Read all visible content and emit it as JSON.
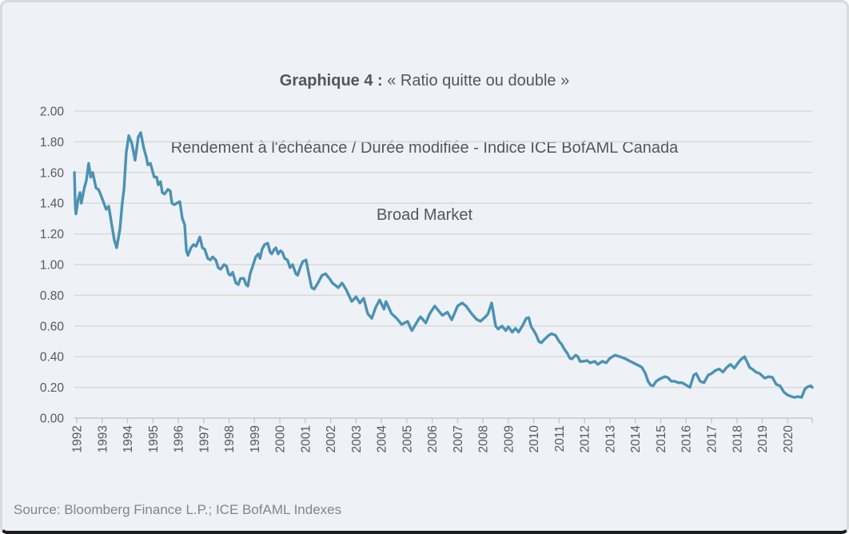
{
  "title": {
    "prefix": "Graphique 4 :",
    "line1_rest": " « Ratio quitte ou double »",
    "line2": "Rendement à l'échéance / Durée modifiée - Indice ICE BofAML Canada",
    "line3": "Broad Market"
  },
  "source": {
    "text": "Source: Bloomberg Finance L.P.; ICE BofAML Indexes"
  },
  "colors": {
    "background": "#eef1f5",
    "line": "#4b92b4",
    "gridline": "#d9d9d9",
    "axis": "#c4c7c9",
    "tick": "#c4c7c9",
    "axis_text": "#58595b",
    "title_text": "#54565a",
    "source_text": "#82868a"
  },
  "chart_data": {
    "type": "line",
    "title": "Graphique 4 : « Ratio quitte ou double » — Rendement à l'échéance / Durée modifiée - Indice ICE BofAML Canada Broad Market",
    "xlabel": "",
    "ylabel": "",
    "xlim": [
      1991.9,
      2021.0
    ],
    "ylim": [
      0,
      2
    ],
    "grid": "horizontal",
    "legend": "none",
    "yticks": [
      0,
      0.2,
      0.4,
      0.6,
      0.8,
      1.0,
      1.2,
      1.4,
      1.6,
      1.8,
      2.0
    ],
    "ytick_labels": [
      "0.00",
      "0.20",
      "0.40",
      "0.60",
      "0.80",
      "1.00",
      "1.20",
      "1.40",
      "1.60",
      "1.80",
      "2.00"
    ],
    "xticks": [
      1992,
      1993,
      1994,
      1995,
      1996,
      1997,
      1998,
      1999,
      2000,
      2001,
      2002,
      2003,
      2004,
      2005,
      2006,
      2007,
      2008,
      2009,
      2010,
      2011,
      2012,
      2013,
      2014,
      2015,
      2016,
      2017,
      2018,
      2019,
      2020
    ],
    "series": [
      {
        "name": "Rendement à l'échéance / Durée modifiée",
        "points": [
          [
            1991.91,
            1.6
          ],
          [
            1991.94,
            1.39
          ],
          [
            1991.97,
            1.33
          ],
          [
            1992.05,
            1.42
          ],
          [
            1992.13,
            1.47
          ],
          [
            1992.18,
            1.4
          ],
          [
            1992.3,
            1.5
          ],
          [
            1992.38,
            1.55
          ],
          [
            1992.47,
            1.66
          ],
          [
            1992.55,
            1.57
          ],
          [
            1992.63,
            1.6
          ],
          [
            1992.76,
            1.5
          ],
          [
            1992.85,
            1.49
          ],
          [
            1992.91,
            1.47
          ],
          [
            1993.07,
            1.4
          ],
          [
            1993.16,
            1.36
          ],
          [
            1993.26,
            1.38
          ],
          [
            1993.39,
            1.25
          ],
          [
            1993.48,
            1.16
          ],
          [
            1993.57,
            1.11
          ],
          [
            1993.7,
            1.23
          ],
          [
            1993.79,
            1.4
          ],
          [
            1993.86,
            1.49
          ],
          [
            1993.95,
            1.73
          ],
          [
            1994.05,
            1.84
          ],
          [
            1994.17,
            1.79
          ],
          [
            1994.3,
            1.68
          ],
          [
            1994.42,
            1.83
          ],
          [
            1994.52,
            1.86
          ],
          [
            1994.64,
            1.76
          ],
          [
            1994.74,
            1.7
          ],
          [
            1994.8,
            1.65
          ],
          [
            1994.9,
            1.66
          ],
          [
            1995.05,
            1.57
          ],
          [
            1995.15,
            1.57
          ],
          [
            1995.21,
            1.52
          ],
          [
            1995.3,
            1.54
          ],
          [
            1995.37,
            1.47
          ],
          [
            1995.46,
            1.46
          ],
          [
            1995.59,
            1.49
          ],
          [
            1995.68,
            1.48
          ],
          [
            1995.75,
            1.4
          ],
          [
            1995.84,
            1.39
          ],
          [
            1995.94,
            1.4
          ],
          [
            1996.06,
            1.41
          ],
          [
            1996.16,
            1.3
          ],
          [
            1996.25,
            1.26
          ],
          [
            1996.32,
            1.09
          ],
          [
            1996.38,
            1.06
          ],
          [
            1996.5,
            1.11
          ],
          [
            1996.6,
            1.13
          ],
          [
            1996.7,
            1.12
          ],
          [
            1996.85,
            1.18
          ],
          [
            1996.95,
            1.11
          ],
          [
            1997.04,
            1.1
          ],
          [
            1997.16,
            1.04
          ],
          [
            1997.26,
            1.03
          ],
          [
            1997.35,
            1.05
          ],
          [
            1997.48,
            1.03
          ],
          [
            1997.57,
            0.98
          ],
          [
            1997.67,
            0.97
          ],
          [
            1997.8,
            1.0
          ],
          [
            1997.9,
            0.99
          ],
          [
            1997.98,
            0.94
          ],
          [
            1998.05,
            0.93
          ],
          [
            1998.14,
            0.95
          ],
          [
            1998.27,
            0.88
          ],
          [
            1998.36,
            0.87
          ],
          [
            1998.45,
            0.91
          ],
          [
            1998.58,
            0.91
          ],
          [
            1998.67,
            0.87
          ],
          [
            1998.74,
            0.86
          ],
          [
            1998.83,
            0.94
          ],
          [
            1998.93,
            0.99
          ],
          [
            1999.05,
            1.05
          ],
          [
            1999.15,
            1.07
          ],
          [
            1999.22,
            1.04
          ],
          [
            1999.3,
            1.1
          ],
          [
            1999.4,
            1.13
          ],
          [
            1999.52,
            1.14
          ],
          [
            1999.62,
            1.08
          ],
          [
            1999.68,
            1.07
          ],
          [
            1999.78,
            1.1
          ],
          [
            1999.84,
            1.11
          ],
          [
            1999.93,
            1.07
          ],
          [
            2000.03,
            1.09
          ],
          [
            2000.1,
            1.08
          ],
          [
            2000.19,
            1.04
          ],
          [
            2000.3,
            1.03
          ],
          [
            2000.4,
            0.98
          ],
          [
            2000.5,
            1.0
          ],
          [
            2000.63,
            0.94
          ],
          [
            2000.7,
            0.93
          ],
          [
            2000.8,
            0.98
          ],
          [
            2000.9,
            1.02
          ],
          [
            2001.03,
            1.03
          ],
          [
            2001.15,
            0.93
          ],
          [
            2001.25,
            0.85
          ],
          [
            2001.35,
            0.84
          ],
          [
            2001.5,
            0.88
          ],
          [
            2001.66,
            0.93
          ],
          [
            2001.8,
            0.94
          ],
          [
            2001.95,
            0.91
          ],
          [
            2002.07,
            0.88
          ],
          [
            2002.3,
            0.85
          ],
          [
            2002.45,
            0.88
          ],
          [
            2002.6,
            0.84
          ],
          [
            2002.83,
            0.76
          ],
          [
            2003.0,
            0.79
          ],
          [
            2003.15,
            0.75
          ],
          [
            2003.3,
            0.78
          ],
          [
            2003.46,
            0.68
          ],
          [
            2003.62,
            0.65
          ],
          [
            2003.77,
            0.72
          ],
          [
            2003.93,
            0.77
          ],
          [
            2004.1,
            0.71
          ],
          [
            2004.18,
            0.76
          ],
          [
            2004.4,
            0.68
          ],
          [
            2004.6,
            0.65
          ],
          [
            2004.8,
            0.61
          ],
          [
            2005.03,
            0.63
          ],
          [
            2005.2,
            0.57
          ],
          [
            2005.45,
            0.64
          ],
          [
            2005.54,
            0.66
          ],
          [
            2005.75,
            0.62
          ],
          [
            2005.9,
            0.68
          ],
          [
            2006.1,
            0.73
          ],
          [
            2006.4,
            0.67
          ],
          [
            2006.6,
            0.69
          ],
          [
            2006.77,
            0.64
          ],
          [
            2007.0,
            0.73
          ],
          [
            2007.18,
            0.75
          ],
          [
            2007.33,
            0.73
          ],
          [
            2007.55,
            0.68
          ],
          [
            2007.74,
            0.645
          ],
          [
            2007.9,
            0.63
          ],
          [
            2008.1,
            0.66
          ],
          [
            2008.2,
            0.68
          ],
          [
            2008.34,
            0.75
          ],
          [
            2008.5,
            0.6
          ],
          [
            2008.6,
            0.58
          ],
          [
            2008.75,
            0.6
          ],
          [
            2008.9,
            0.57
          ],
          [
            2009.0,
            0.595
          ],
          [
            2009.15,
            0.56
          ],
          [
            2009.28,
            0.585
          ],
          [
            2009.4,
            0.56
          ],
          [
            2009.55,
            0.6
          ],
          [
            2009.7,
            0.65
          ],
          [
            2009.8,
            0.655
          ],
          [
            2009.9,
            0.595
          ],
          [
            2010.0,
            0.57
          ],
          [
            2010.1,
            0.54
          ],
          [
            2010.2,
            0.5
          ],
          [
            2010.3,
            0.49
          ],
          [
            2010.4,
            0.51
          ],
          [
            2010.6,
            0.54
          ],
          [
            2010.7,
            0.55
          ],
          [
            2010.85,
            0.54
          ],
          [
            2011.0,
            0.5
          ],
          [
            2011.1,
            0.48
          ],
          [
            2011.2,
            0.45
          ],
          [
            2011.33,
            0.42
          ],
          [
            2011.42,
            0.39
          ],
          [
            2011.5,
            0.385
          ],
          [
            2011.65,
            0.41
          ],
          [
            2011.74,
            0.4
          ],
          [
            2011.82,
            0.37
          ],
          [
            2011.96,
            0.37
          ],
          [
            2012.1,
            0.375
          ],
          [
            2012.22,
            0.36
          ],
          [
            2012.4,
            0.37
          ],
          [
            2012.52,
            0.35
          ],
          [
            2012.7,
            0.37
          ],
          [
            2012.85,
            0.36
          ],
          [
            2013.0,
            0.39
          ],
          [
            2013.2,
            0.41
          ],
          [
            2013.4,
            0.4
          ],
          [
            2013.63,
            0.385
          ],
          [
            2013.8,
            0.37
          ],
          [
            2014.04,
            0.35
          ],
          [
            2014.16,
            0.34
          ],
          [
            2014.26,
            0.33
          ],
          [
            2014.4,
            0.29
          ],
          [
            2014.5,
            0.24
          ],
          [
            2014.6,
            0.215
          ],
          [
            2014.7,
            0.21
          ],
          [
            2014.82,
            0.24
          ],
          [
            2014.97,
            0.255
          ],
          [
            2015.15,
            0.27
          ],
          [
            2015.27,
            0.265
          ],
          [
            2015.42,
            0.24
          ],
          [
            2015.55,
            0.24
          ],
          [
            2015.7,
            0.23
          ],
          [
            2015.85,
            0.23
          ],
          [
            2016.05,
            0.21
          ],
          [
            2016.15,
            0.2
          ],
          [
            2016.3,
            0.28
          ],
          [
            2016.4,
            0.29
          ],
          [
            2016.55,
            0.24
          ],
          [
            2016.7,
            0.23
          ],
          [
            2016.87,
            0.28
          ],
          [
            2017.0,
            0.29
          ],
          [
            2017.15,
            0.31
          ],
          [
            2017.3,
            0.32
          ],
          [
            2017.45,
            0.3
          ],
          [
            2017.6,
            0.33
          ],
          [
            2017.75,
            0.35
          ],
          [
            2017.9,
            0.325
          ],
          [
            2018.05,
            0.36
          ],
          [
            2018.15,
            0.38
          ],
          [
            2018.3,
            0.4
          ],
          [
            2018.42,
            0.36
          ],
          [
            2018.5,
            0.33
          ],
          [
            2018.6,
            0.32
          ],
          [
            2018.75,
            0.3
          ],
          [
            2018.9,
            0.29
          ],
          [
            2019.1,
            0.26
          ],
          [
            2019.25,
            0.27
          ],
          [
            2019.4,
            0.265
          ],
          [
            2019.55,
            0.22
          ],
          [
            2019.7,
            0.21
          ],
          [
            2019.85,
            0.17
          ],
          [
            2020.0,
            0.15
          ],
          [
            2020.15,
            0.14
          ],
          [
            2020.27,
            0.135
          ],
          [
            2020.4,
            0.14
          ],
          [
            2020.55,
            0.135
          ],
          [
            2020.68,
            0.19
          ],
          [
            2020.8,
            0.205
          ],
          [
            2020.92,
            0.21
          ],
          [
            2020.97,
            0.2
          ]
        ]
      }
    ]
  }
}
